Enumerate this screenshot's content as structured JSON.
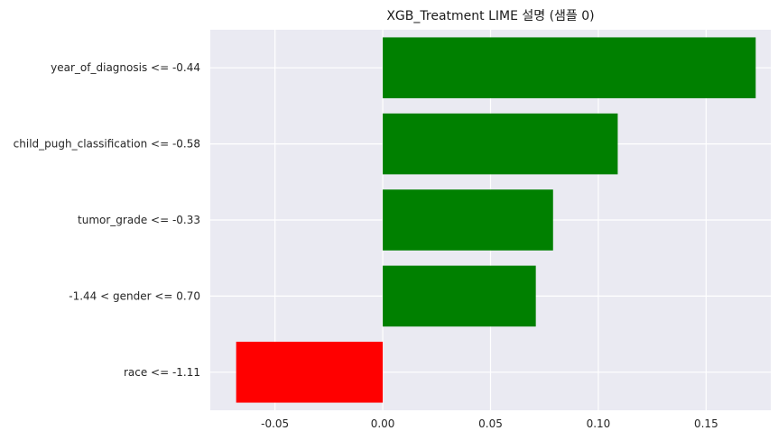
{
  "chart_data": {
    "type": "bar",
    "orientation": "horizontal",
    "title": "XGB_Treatment LIME 설명 (샘플 0)",
    "xlabel": "",
    "ylabel": "",
    "categories": [
      "year_of_diagnosis <= -0.44",
      "child_pugh_classification <= -0.58",
      "tumor_grade <= -0.33",
      "-1.44 < gender <= 0.70",
      "race <= -1.11"
    ],
    "values": [
      0.173,
      0.109,
      0.079,
      0.071,
      -0.068
    ],
    "xlim": [
      -0.08,
      0.18
    ],
    "xticks": [
      -0.05,
      0.0,
      0.05,
      0.1,
      0.15
    ],
    "xtick_labels": [
      "-0.05",
      "0.00",
      "0.05",
      "0.10",
      "0.15"
    ],
    "grid": true,
    "positive_color": "#008000",
    "negative_color": "#ff0000",
    "plot_background": "#eaeaf2",
    "grid_color": "#ffffff"
  }
}
